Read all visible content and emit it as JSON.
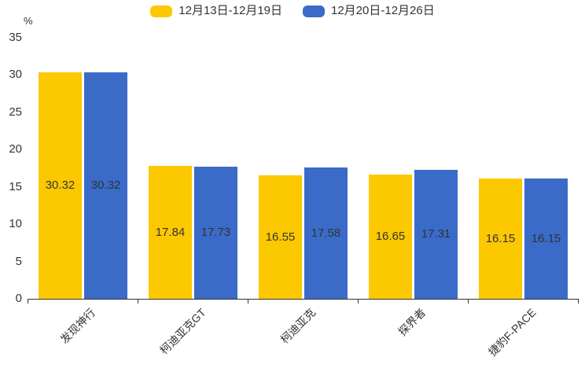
{
  "chart_data": {
    "type": "bar",
    "title": "",
    "xlabel": "",
    "ylabel": "%",
    "ylim": [
      0,
      35
    ],
    "yticks": [
      0,
      5,
      10,
      15,
      20,
      25,
      30,
      35
    ],
    "grid": false,
    "legend_position": "top-center",
    "value_labels": "inside-center",
    "categories": [
      "发现神行",
      "柯迪亚克GT",
      "柯迪亚克",
      "探界者",
      "捷豹F-PACE"
    ],
    "series": [
      {
        "name": "12月13日-12月19日",
        "color": "#FCC800",
        "values": [
          30.32,
          17.84,
          16.55,
          16.65,
          16.15
        ]
      },
      {
        "name": "12月20日-12月26日",
        "color": "#3A6BC9",
        "values": [
          30.32,
          17.73,
          17.58,
          17.31,
          16.15
        ]
      }
    ]
  },
  "colors": {
    "background": "#FFFFFF",
    "axis": "#333333",
    "text": "#333333"
  }
}
